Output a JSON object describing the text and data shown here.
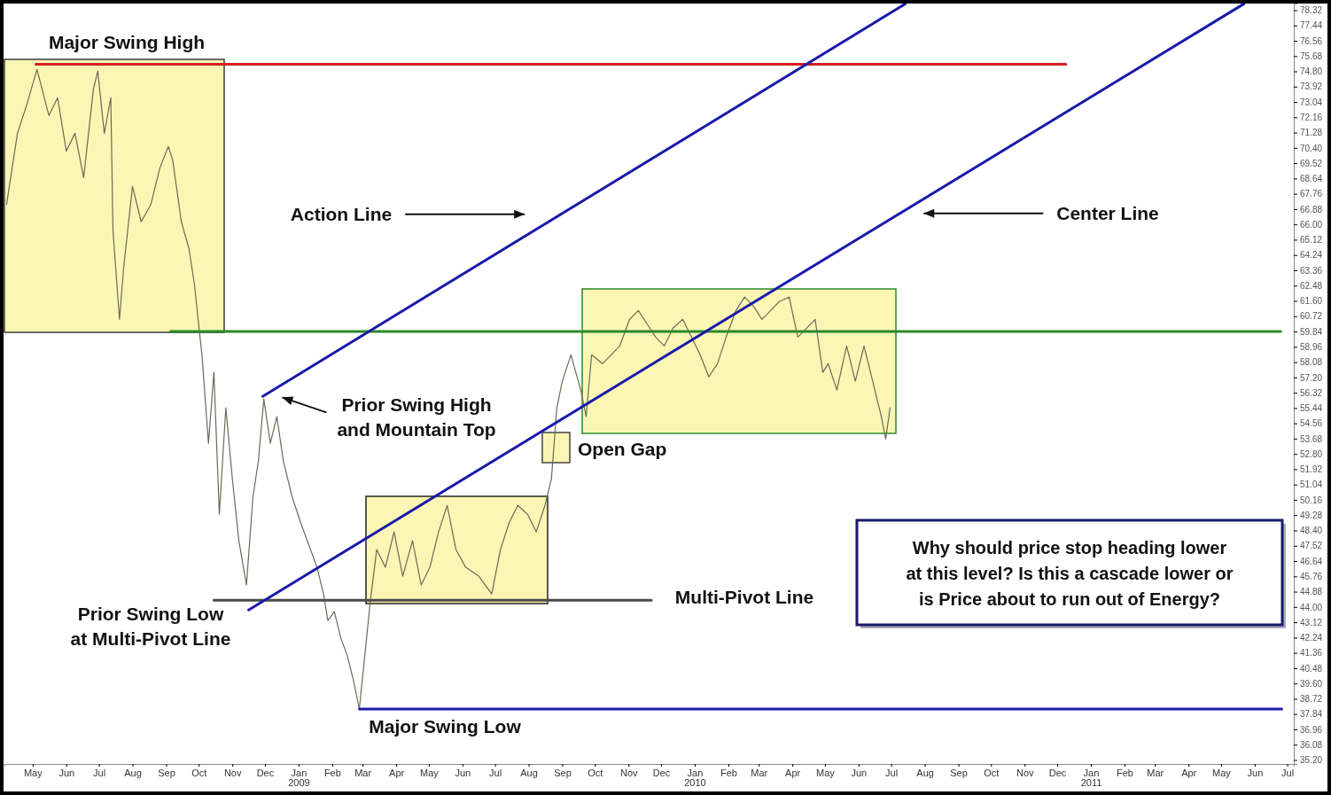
{
  "chart_data": {
    "type": "line",
    "xlim": [
      "2008-04-05",
      "2011-07-07"
    ],
    "ylim": [
      34.97,
      78.7
    ],
    "xticks": [
      {
        "value": "2008-05-01",
        "label": "May"
      },
      {
        "value": "2008-06-01",
        "label": "Jun"
      },
      {
        "value": "2008-07-01",
        "label": "Jul"
      },
      {
        "value": "2008-08-01",
        "label": "Aug"
      },
      {
        "value": "2008-09-01",
        "label": "Sep"
      },
      {
        "value": "2008-10-01",
        "label": "Oct"
      },
      {
        "value": "2008-11-01",
        "label": "Nov"
      },
      {
        "value": "2008-12-01",
        "label": "Dec"
      },
      {
        "value": "2009-01-01",
        "label": "Jan\n2009"
      },
      {
        "value": "2009-02-01",
        "label": "Feb"
      },
      {
        "value": "2009-03-01",
        "label": "Mar"
      },
      {
        "value": "2009-04-01",
        "label": "Apr"
      },
      {
        "value": "2009-05-01",
        "label": "May"
      },
      {
        "value": "2009-06-01",
        "label": "Jun"
      },
      {
        "value": "2009-07-01",
        "label": "Jul"
      },
      {
        "value": "2009-08-01",
        "label": "Aug"
      },
      {
        "value": "2009-09-01",
        "label": "Sep"
      },
      {
        "value": "2009-10-01",
        "label": "Oct"
      },
      {
        "value": "2009-11-01",
        "label": "Nov"
      },
      {
        "value": "2009-12-01",
        "label": "Dec"
      },
      {
        "value": "2010-01-01",
        "label": "Jan\n2010"
      },
      {
        "value": "2010-02-01",
        "label": "Feb"
      },
      {
        "value": "2010-03-01",
        "label": "Mar"
      },
      {
        "value": "2010-04-01",
        "label": "Apr"
      },
      {
        "value": "2010-05-01",
        "label": "May"
      },
      {
        "value": "2010-06-01",
        "label": "Jun"
      },
      {
        "value": "2010-07-01",
        "label": "Jul"
      },
      {
        "value": "2010-08-01",
        "label": "Aug"
      },
      {
        "value": "2010-09-01",
        "label": "Sep"
      },
      {
        "value": "2010-10-01",
        "label": "Oct"
      },
      {
        "value": "2010-11-01",
        "label": "Nov"
      },
      {
        "value": "2010-12-01",
        "label": "Dec"
      },
      {
        "value": "2011-01-01",
        "label": "Jan\n2011"
      },
      {
        "value": "2011-02-01",
        "label": "Feb"
      },
      {
        "value": "2011-03-01",
        "label": "Mar"
      },
      {
        "value": "2011-04-01",
        "label": "Apr"
      },
      {
        "value": "2011-05-01",
        "label": "May"
      },
      {
        "value": "2011-06-01",
        "label": "Jun"
      },
      {
        "value": "2011-07-01",
        "label": "Jul"
      }
    ],
    "yticks": [
      {
        "value": 78.32,
        "label": "78.32"
      },
      {
        "value": 77.44,
        "label": "77.44"
      },
      {
        "value": 76.56,
        "label": "76.56"
      },
      {
        "value": 75.68,
        "label": "75.68"
      },
      {
        "value": 74.8,
        "label": "74.80"
      },
      {
        "value": 73.92,
        "label": "73.92"
      },
      {
        "value": 73.04,
        "label": "73.04"
      },
      {
        "value": 72.16,
        "label": "72.16"
      },
      {
        "value": 71.28,
        "label": "71.28"
      },
      {
        "value": 70.4,
        "label": "70.40"
      },
      {
        "value": 69.52,
        "label": "69.52"
      },
      {
        "value": 68.64,
        "label": "68.64"
      },
      {
        "value": 67.76,
        "label": "67.76"
      },
      {
        "value": 66.88,
        "label": "66.88"
      },
      {
        "value": 66.0,
        "label": "66.00"
      },
      {
        "value": 65.12,
        "label": "65.12"
      },
      {
        "value": 64.24,
        "label": "64.24"
      },
      {
        "value": 63.36,
        "label": "63.36"
      },
      {
        "value": 62.48,
        "label": "62.48"
      },
      {
        "value": 61.6,
        "label": "61.60"
      },
      {
        "value": 60.72,
        "label": "60.72"
      },
      {
        "value": 59.84,
        "label": "59.84"
      },
      {
        "value": 58.96,
        "label": "58.96"
      },
      {
        "value": 58.08,
        "label": "58.08"
      },
      {
        "value": 57.2,
        "label": "57.20"
      },
      {
        "value": 56.32,
        "label": "56.32"
      },
      {
        "value": 55.44,
        "label": "55.44"
      },
      {
        "value": 54.56,
        "label": "54.56"
      },
      {
        "value": 53.68,
        "label": "53.68"
      },
      {
        "value": 52.8,
        "label": "52.80"
      },
      {
        "value": 51.92,
        "label": "51.92"
      },
      {
        "value": 51.04,
        "label": "51.04"
      },
      {
        "value": 50.16,
        "label": "50.16"
      },
      {
        "value": 49.28,
        "label": "49.28"
      },
      {
        "value": 48.4,
        "label": "48.40"
      },
      {
        "value": 47.52,
        "label": "47.52"
      },
      {
        "value": 46.64,
        "label": "46.64"
      },
      {
        "value": 45.76,
        "label": "45.76"
      },
      {
        "value": 44.88,
        "label": "44.88"
      },
      {
        "value": 44.0,
        "label": "44.00"
      },
      {
        "value": 43.12,
        "label": "43.12"
      },
      {
        "value": 42.24,
        "label": "42.24"
      },
      {
        "value": 41.36,
        "label": "41.36"
      },
      {
        "value": 40.48,
        "label": "40.48"
      },
      {
        "value": 39.6,
        "label": "39.60"
      },
      {
        "value": 38.72,
        "label": "38.72"
      },
      {
        "value": 37.84,
        "label": "37.84"
      },
      {
        "value": 36.96,
        "label": "36.96"
      },
      {
        "value": 36.08,
        "label": "36.08"
      },
      {
        "value": 35.2,
        "label": "35.20"
      }
    ],
    "series": [
      {
        "color": "#6b6b58",
        "x": [
          "2008-04-07",
          "2008-04-17",
          "2008-04-25",
          "2008-05-05",
          "2008-05-16",
          "2008-05-24",
          "2008-06-01",
          "2008-06-09",
          "2008-06-17",
          "2008-06-26",
          "2008-06-30",
          "2008-07-06",
          "2008-07-12",
          "2008-07-14",
          "2008-07-20",
          "2008-07-24",
          "2008-08-01",
          "2008-08-09",
          "2008-08-18",
          "2008-08-26",
          "2008-09-03",
          "2008-09-07",
          "2008-09-15",
          "2008-09-22",
          "2008-09-27",
          "2008-10-04",
          "2008-10-10",
          "2008-10-15",
          "2008-10-20",
          "2008-10-26",
          "2008-11-01",
          "2008-11-07",
          "2008-11-14",
          "2008-11-20",
          "2008-11-25",
          "2008-11-30",
          "2008-12-06",
          "2008-12-12",
          "2008-12-18",
          "2008-12-26",
          "2009-01-03",
          "2009-01-12",
          "2009-01-18",
          "2009-01-24",
          "2009-01-28",
          "2009-02-03",
          "2009-02-09",
          "2009-02-15",
          "2009-02-21",
          "2009-02-26",
          "2009-03-03",
          "2009-03-08",
          "2009-03-14",
          "2009-03-22",
          "2009-03-30",
          "2009-04-07",
          "2009-04-16",
          "2009-04-24",
          "2009-05-02",
          "2009-05-10",
          "2009-05-18",
          "2009-05-26",
          "2009-06-04",
          "2009-06-16",
          "2009-06-28",
          "2009-07-06",
          "2009-07-14",
          "2009-07-22",
          "2009-07-31",
          "2009-08-08",
          "2009-08-16",
          "2009-08-22",
          "2009-08-27",
          "2009-09-01",
          "2009-09-09",
          "2009-09-18",
          "2009-09-23",
          "2009-09-28",
          "2009-10-08",
          "2009-10-16",
          "2009-10-24",
          "2009-11-02",
          "2009-11-10",
          "2009-11-18",
          "2009-11-26",
          "2009-12-04",
          "2009-12-12",
          "2009-12-21",
          "2009-12-29",
          "2010-01-06",
          "2010-01-14",
          "2010-01-22",
          "2010-01-30",
          "2010-02-08",
          "2010-02-16",
          "2010-02-24",
          "2010-03-04",
          "2010-03-12",
          "2010-03-20",
          "2010-03-29",
          "2010-04-06",
          "2010-04-14",
          "2010-04-22",
          "2010-04-29",
          "2010-05-04",
          "2010-05-12",
          "2010-05-21",
          "2010-05-29",
          "2010-06-06",
          "2010-06-14",
          "2010-06-22",
          "2010-06-26",
          "2010-06-30"
        ],
        "values": [
          67.16,
          71.24,
          72.77,
          74.91,
          72.26,
          73.28,
          70.22,
          71.24,
          68.69,
          73.79,
          74.81,
          71.24,
          73.28,
          65.64,
          60.54,
          63.6,
          68.18,
          66.15,
          67.16,
          69.2,
          70.48,
          69.71,
          66.15,
          64.62,
          62.58,
          58.5,
          53.41,
          57.49,
          49.33,
          55.45,
          51.37,
          47.81,
          45.26,
          50.35,
          52.39,
          55.96,
          53.41,
          54.94,
          52.39,
          50.35,
          48.83,
          47.3,
          46.28,
          44.75,
          43.22,
          43.73,
          42.2,
          41.18,
          39.66,
          38.13,
          41.18,
          44.24,
          47.3,
          46.28,
          48.32,
          45.77,
          47.81,
          45.26,
          46.28,
          48.32,
          49.84,
          47.3,
          46.28,
          45.77,
          44.75,
          47.3,
          48.83,
          49.84,
          49.33,
          48.32,
          49.84,
          51.37,
          55.45,
          56.98,
          58.5,
          56.47,
          54.94,
          58.5,
          57.99,
          58.5,
          59.01,
          60.54,
          61.05,
          60.29,
          59.52,
          59.01,
          60.03,
          60.54,
          59.52,
          58.5,
          57.23,
          57.99,
          59.52,
          61.05,
          61.82,
          61.31,
          60.54,
          61.05,
          61.56,
          61.82,
          59.52,
          60.03,
          60.54,
          57.49,
          57.99,
          56.47,
          59.01,
          56.98,
          59.01,
          56.98,
          54.94,
          53.66,
          55.45
        ]
      },
      {
        "type": "line",
        "color": "#d42020",
        "x": [
          "2008-05-04",
          "2010-12-09"
        ],
        "values": [
          75.21,
          75.21
        ]
      },
      {
        "type": "line",
        "color": "#2a8a2a",
        "x": [
          "2008-09-05",
          "2011-06-25"
        ],
        "values": [
          59.84,
          59.84
        ]
      },
      {
        "type": "line",
        "color": "#4a4a4a",
        "x": [
          "2008-10-15",
          "2009-11-22"
        ],
        "values": [
          44.39,
          44.39
        ]
      },
      {
        "type": "line",
        "color": "#1a1aaa",
        "x": [
          "2009-02-26",
          "2011-06-26"
        ],
        "values": [
          38.13,
          38.13
        ]
      },
      {
        "type": "line",
        "color": "#1a1aaa",
        "x": [
          "2008-11-29",
          "2010-07-14"
        ],
        "values": [
          56.11,
          78.68
        ]
      },
      {
        "type": "line",
        "color": "#1a1aaa",
        "x": [
          "2008-11-16",
          "2011-05-22"
        ],
        "values": [
          43.83,
          78.68
        ]
      }
    ],
    "annotations": [
      "Major Swing High",
      "Action Line",
      "Center Line",
      "Prior Swing High\nand Mountain Top",
      "Open Gap",
      "Multi-Pivot Line",
      "Prior Swing Low\nat Multi-Pivot Line",
      "Major Swing Low",
      "Why should price stop heading lower\nat this level? Is this a cascade lower or\nis Price about to run out of Energy?"
    ]
  }
}
